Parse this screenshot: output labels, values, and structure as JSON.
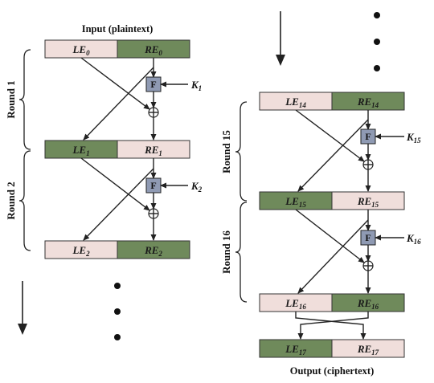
{
  "input_caption": "Input (plaintext)",
  "output_caption": "Output (ciphertext)",
  "colors": {
    "green": "#6f8a5b",
    "pink": "#f0dedb",
    "f_box": "#8f9ab3",
    "xor": "#ffffff"
  },
  "rows": [
    {
      "left": {
        "base": "LE",
        "sub": "0",
        "shade": "pink"
      },
      "right": {
        "base": "RE",
        "sub": "0",
        "shade": "green"
      }
    },
    {
      "left": {
        "base": "LE",
        "sub": "1",
        "shade": "green"
      },
      "right": {
        "base": "RE",
        "sub": "1",
        "shade": "pink"
      }
    },
    {
      "left": {
        "base": "LE",
        "sub": "2",
        "shade": "pink"
      },
      "right": {
        "base": "RE",
        "sub": "2",
        "shade": "green"
      }
    },
    {
      "left": {
        "base": "LE",
        "sub": "14",
        "shade": "pink"
      },
      "right": {
        "base": "RE",
        "sub": "14",
        "shade": "green"
      }
    },
    {
      "left": {
        "base": "LE",
        "sub": "15",
        "shade": "green"
      },
      "right": {
        "base": "RE",
        "sub": "15",
        "shade": "pink"
      }
    },
    {
      "left": {
        "base": "LE",
        "sub": "16",
        "shade": "pink"
      },
      "right": {
        "base": "RE",
        "sub": "16",
        "shade": "green"
      }
    },
    {
      "left": {
        "base": "LE",
        "sub": "17",
        "shade": "green"
      },
      "right": {
        "base": "RE",
        "sub": "17",
        "shade": "pink"
      }
    }
  ],
  "rounds": [
    {
      "label": "Round 1",
      "f_label": "F",
      "key": {
        "base": "K",
        "sub": "1"
      }
    },
    {
      "label": "Round 2",
      "f_label": "F",
      "key": {
        "base": "K",
        "sub": "2"
      }
    },
    {
      "label": "Round 15",
      "f_label": "F",
      "key": {
        "base": "K",
        "sub": "15"
      }
    },
    {
      "label": "Round 16",
      "f_label": "F",
      "key": {
        "base": "K",
        "sub": "16"
      }
    }
  ],
  "xor_symbol": "⊕"
}
